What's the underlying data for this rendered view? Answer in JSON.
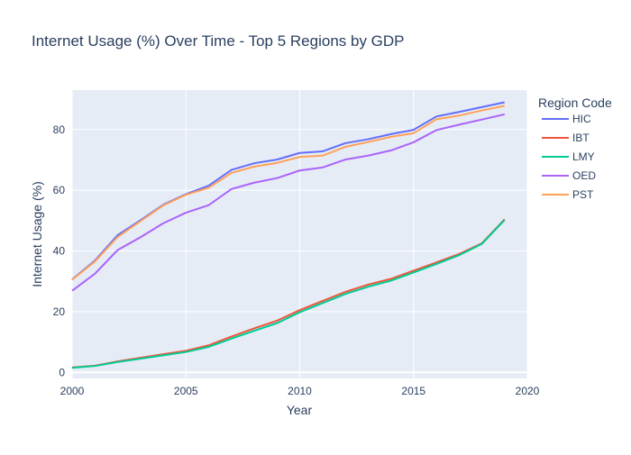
{
  "chart_data": {
    "type": "line",
    "title": "Internet Usage (%) Over Time - Top 5 Regions by GDP",
    "xlabel": "Year",
    "ylabel": "Internet Usage (%)",
    "xlim": [
      2000,
      2020
    ],
    "ylim": [
      -2,
      93
    ],
    "x_ticks": [
      2000,
      2005,
      2010,
      2015,
      2020
    ],
    "y_ticks": [
      0,
      20,
      40,
      60,
      80
    ],
    "grid": true,
    "legend": {
      "title": "Region Code",
      "placement": "right"
    },
    "background_color": "#e5ecf6",
    "x": [
      2000,
      2001,
      2002,
      2003,
      2004,
      2005,
      2006,
      2007,
      2008,
      2009,
      2010,
      2011,
      2012,
      2013,
      2014,
      2015,
      2016,
      2017,
      2018,
      2019
    ],
    "series": [
      {
        "name": "HIC",
        "color": "#636efa",
        "values": [
          30.6,
          36.8,
          45.2,
          50.1,
          55.2,
          58.7,
          61.5,
          66.7,
          68.9,
          70.1,
          72.3,
          72.8,
          75.5,
          76.8,
          78.5,
          79.9,
          84.3,
          85.8,
          87.4,
          89.0
        ]
      },
      {
        "name": "IBT",
        "color": "#ef553b",
        "values": [
          1.6,
          2.2,
          3.6,
          4.8,
          6.0,
          7.1,
          8.9,
          11.8,
          14.5,
          17.0,
          20.5,
          23.5,
          26.5,
          28.9,
          30.8,
          33.5,
          36.2,
          39.0,
          42.5,
          50.4
        ]
      },
      {
        "name": "LMY",
        "color": "#00cc96",
        "values": [
          1.5,
          2.1,
          3.4,
          4.5,
          5.6,
          6.7,
          8.4,
          11.1,
          13.7,
          16.2,
          19.8,
          22.8,
          25.8,
          28.2,
          30.2,
          32.9,
          35.7,
          38.6,
          42.3,
          50.2
        ]
      },
      {
        "name": "OED",
        "color": "#ab63fa",
        "values": [
          26.9,
          32.5,
          40.3,
          44.5,
          49.1,
          52.6,
          55.1,
          60.4,
          62.5,
          64.0,
          66.5,
          67.5,
          70.1,
          71.4,
          73.1,
          75.8,
          79.8,
          81.6,
          83.3,
          85.0
        ]
      },
      {
        "name": "PST",
        "color": "#ffa15a",
        "values": [
          30.5,
          36.5,
          44.6,
          49.8,
          55.0,
          58.5,
          60.8,
          65.7,
          67.8,
          69.0,
          71.0,
          71.4,
          74.3,
          75.9,
          77.6,
          78.8,
          83.4,
          84.6,
          86.3,
          87.8
        ]
      }
    ]
  }
}
